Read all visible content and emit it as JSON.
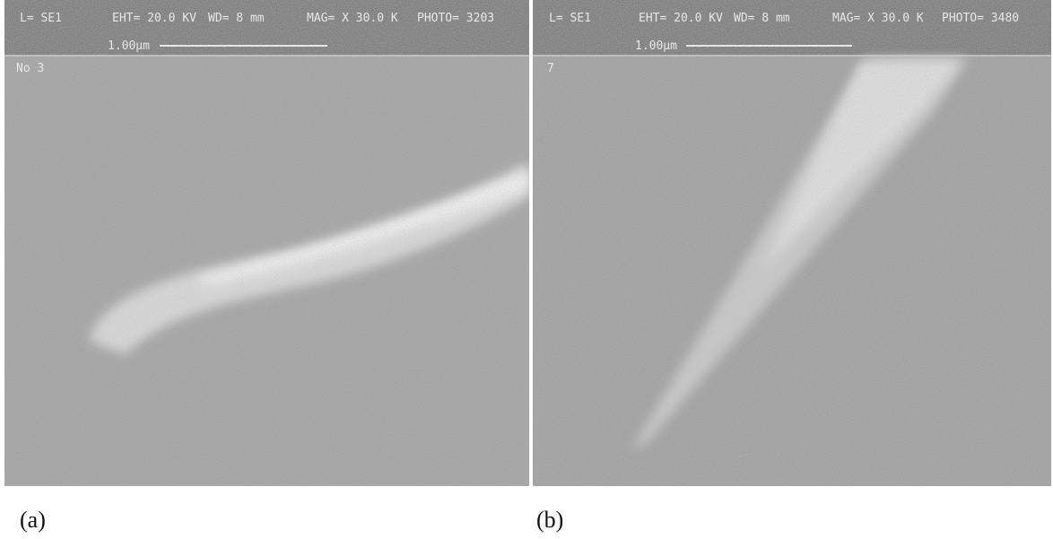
{
  "panels": [
    {
      "header": {
        "detector": "L= SE1",
        "eht": "EHT= 20.0 KV",
        "wd": "WD= 8 mm",
        "mag": "MAG= X 30.0 K",
        "photo": "PHOTO= 3203",
        "scale": "1.00µm",
        "note": "No 3"
      },
      "caption": "(a)"
    },
    {
      "header": {
        "detector": "L= SE1",
        "eht": "EHT= 20.0 KV",
        "wd": "WD= 8 mm",
        "mag": "MAG= X 30.0 K",
        "photo": "PHOTO= 3480",
        "scale": "1.00µm",
        "note": "7"
      },
      "caption": "(b)"
    }
  ]
}
